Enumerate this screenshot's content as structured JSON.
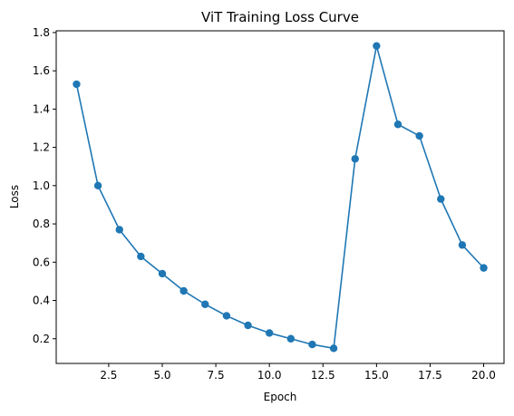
{
  "chart_data": {
    "type": "line",
    "title": "ViT Training Loss Curve",
    "xlabel": "Epoch",
    "ylabel": "Loss",
    "xlim": [
      0.05,
      20.95
    ],
    "ylim": [
      0.071,
      1.809
    ],
    "xticks": [
      2.5,
      5.0,
      7.5,
      10.0,
      12.5,
      15.0,
      17.5,
      20.0
    ],
    "xtick_labels": [
      "2.5",
      "5.0",
      "7.5",
      "10.0",
      "12.5",
      "15.0",
      "17.5",
      "20.0"
    ],
    "yticks": [
      0.2,
      0.4,
      0.6,
      0.8,
      1.0,
      1.2,
      1.4,
      1.6,
      1.8
    ],
    "ytick_labels": [
      "0.2",
      "0.4",
      "0.6",
      "0.8",
      "1.0",
      "1.2",
      "1.4",
      "1.6",
      "1.8"
    ],
    "grid": false,
    "series": [
      {
        "color": "#1f77b4",
        "marker": "circle",
        "x": [
          1,
          2,
          3,
          4,
          5,
          6,
          7,
          8,
          9,
          10,
          11,
          12,
          13,
          14,
          15,
          16,
          17,
          18,
          19,
          20
        ],
        "y": [
          1.53,
          1.0,
          0.77,
          0.63,
          0.54,
          0.45,
          0.38,
          0.32,
          0.27,
          0.23,
          0.2,
          0.17,
          0.15,
          1.14,
          1.73,
          1.32,
          1.26,
          0.93,
          0.69,
          0.57
        ]
      }
    ]
  }
}
